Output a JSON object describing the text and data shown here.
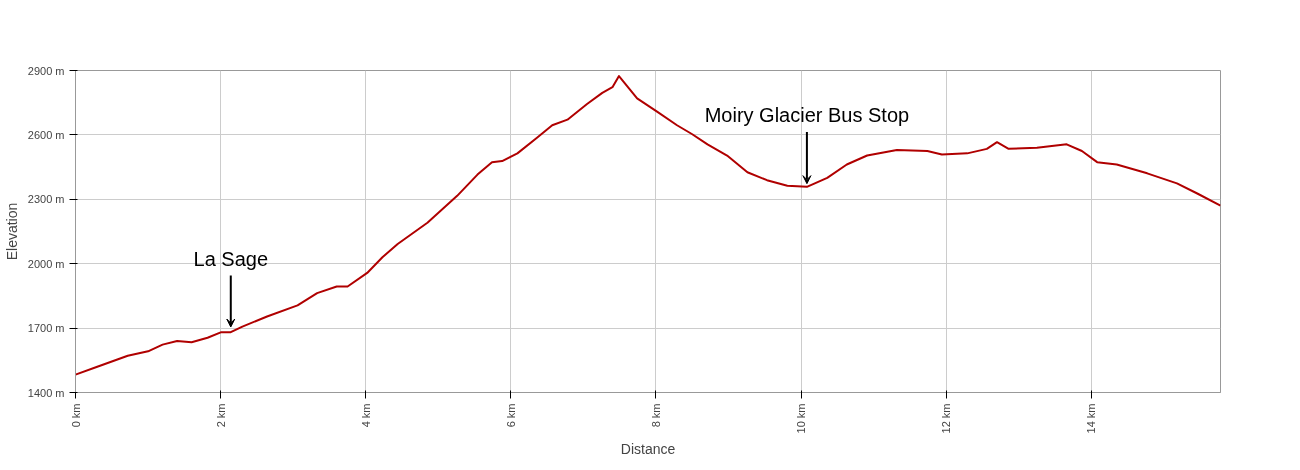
{
  "chart_data": {
    "type": "line",
    "xlabel": "Distance",
    "ylabel": "Elevation",
    "x": [
      0,
      0.3,
      0.72,
      1.0,
      1.2,
      1.4,
      1.6,
      1.82,
      2.01,
      2.14,
      2.3,
      2.64,
      3.06,
      3.33,
      3.6,
      3.75,
      4.02,
      4.23,
      4.44,
      4.85,
      5.26,
      5.54,
      5.74,
      5.88,
      6.09,
      6.36,
      6.57,
      6.78,
      7.05,
      7.26,
      7.4,
      7.49,
      7.58,
      7.74,
      8.02,
      8.29,
      8.5,
      8.71,
      8.98,
      9.26,
      9.53,
      9.81,
      10.08,
      10.36,
      10.63,
      10.91,
      11.32,
      11.74,
      11.94,
      12.29,
      12.56,
      12.7,
      12.86,
      13.25,
      13.66,
      13.87,
      14.08,
      14.35,
      14.77,
      15.18,
      15.46,
      15.78
    ],
    "series": [
      {
        "color": "#b00000",
        "values": [
          1483,
          1520,
          1571,
          1592,
          1623,
          1640,
          1634,
          1655,
          1681,
          1681,
          1707,
          1754,
          1806,
          1863,
          1894,
          1894,
          1957,
          2030,
          2092,
          2191,
          2316,
          2415,
          2473,
          2478,
          2514,
          2587,
          2645,
          2671,
          2744,
          2796,
          2822,
          2874,
          2837,
          2770,
          2707,
          2645,
          2603,
          2556,
          2504,
          2426,
          2389,
          2363,
          2358,
          2400,
          2462,
          2504,
          2530,
          2525,
          2509,
          2514,
          2535,
          2566,
          2535,
          2540,
          2556,
          2525,
          2473,
          2462,
          2421,
          2374,
          2327,
          2270
        ]
      }
    ],
    "xlim": [
      0,
      15.78
    ],
    "xticks": [
      {
        "value": 0,
        "label": "0 km"
      },
      {
        "value": 2,
        "label": "2 km"
      },
      {
        "value": 4,
        "label": "4 km"
      },
      {
        "value": 6,
        "label": "6 km"
      },
      {
        "value": 8,
        "label": "8 km"
      },
      {
        "value": 10,
        "label": "10 km"
      },
      {
        "value": 12,
        "label": "12 km"
      },
      {
        "value": 14,
        "label": "14 km"
      }
    ],
    "ylim": [
      1400,
      2900
    ],
    "yticks": [
      {
        "value": 1400,
        "label": "1400 m"
      },
      {
        "value": 1700,
        "label": "1700 m"
      },
      {
        "value": 2000,
        "label": "2000 m"
      },
      {
        "value": 2300,
        "label": "2300 m"
      },
      {
        "value": 2600,
        "label": "2600 m"
      },
      {
        "value": 2900,
        "label": "2900 m"
      }
    ],
    "annotations": [
      {
        "text": "La Sage",
        "x": 2.14,
        "y": 1690
      },
      {
        "text": "Moiry Glacier Bus Stop",
        "x": 10.08,
        "y": 2358
      }
    ],
    "grid": true,
    "line_style": "solid",
    "marker": "none"
  }
}
